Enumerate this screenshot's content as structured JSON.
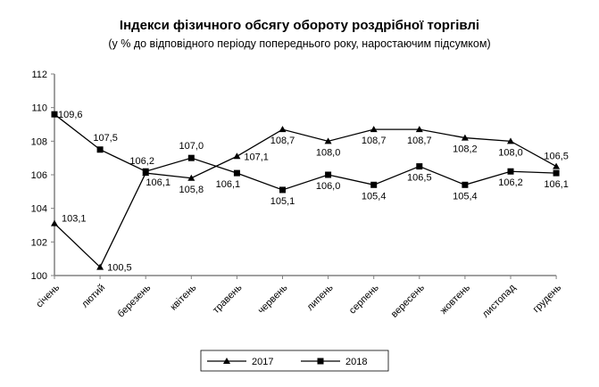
{
  "chart_data": {
    "type": "line",
    "title": "Індекси фізичного обсягу обороту роздрібної торгівлі",
    "subtitle": "(у % до відповідного періоду попереднього року, наростаючим підсумком)",
    "categories": [
      "січень",
      "лютий",
      "березень",
      "квітень",
      "травень",
      "червень",
      "липень",
      "серпень",
      "вересень",
      "жовтень",
      "листопад",
      "грудень"
    ],
    "series": [
      {
        "name": "2017",
        "marker": "triangle",
        "values": [
          103.1,
          100.5,
          106.1,
          105.8,
          107.1,
          108.7,
          108.0,
          108.7,
          108.7,
          108.2,
          108.0,
          106.5
        ]
      },
      {
        "name": "2018",
        "marker": "square",
        "values": [
          109.6,
          107.5,
          106.2,
          107.0,
          106.1,
          105.1,
          106.0,
          105.4,
          106.5,
          105.4,
          106.2,
          106.1
        ]
      }
    ],
    "ylim": [
      100,
      112
    ],
    "yticks": [
      100,
      102,
      104,
      106,
      108,
      110,
      112
    ],
    "grid": false,
    "legend_position": "bottom",
    "line_color": "#000000"
  }
}
